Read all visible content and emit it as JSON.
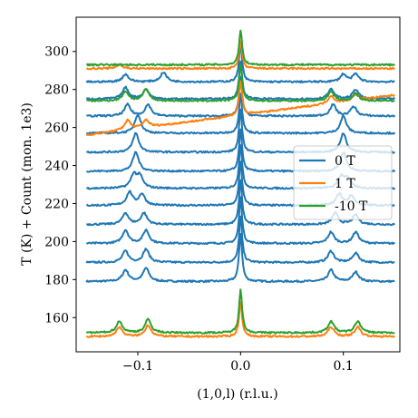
{
  "chart_data": {
    "type": "line",
    "title": "",
    "xlabel": "(1,0,l) (r.l.u.)",
    "ylabel": "T (K) + Count (mon. 1e3)",
    "xlim": [
      -0.16,
      0.155
    ],
    "ylim": [
      142,
      318
    ],
    "xticks": [
      -0.1,
      0.0,
      0.1
    ],
    "xtick_labels": [
      "−0.1",
      "0.0",
      "0.1"
    ],
    "yticks": [
      160,
      180,
      200,
      220,
      240,
      260,
      280,
      300
    ],
    "ytick_labels": [
      "160",
      "180",
      "200",
      "220",
      "240",
      "260",
      "280",
      "300"
    ],
    "grid": false,
    "legend_position": "center-right",
    "x_range": [
      -0.15,
      0.15
    ],
    "colors": {
      "0 T": "#1f77b4",
      "1 T": "#ff7f0e",
      "-10 T": "#2ca02c"
    },
    "series": [
      {
        "name": "0 T",
        "traces": [
          {
            "baseline": 179,
            "peaks": [
              [
                -0.112,
                6
              ],
              [
                -0.092,
                7
              ],
              [
                0.0,
                25
              ],
              [
                0.088,
                6
              ],
              [
                0.112,
                5
              ]
            ]
          },
          {
            "baseline": 189,
            "peaks": [
              [
                -0.112,
                6
              ],
              [
                -0.092,
                7
              ],
              [
                0.0,
                24
              ],
              [
                0.088,
                6
              ],
              [
                0.112,
                5
              ]
            ]
          },
          {
            "baseline": 199,
            "peaks": [
              [
                -0.112,
                7
              ],
              [
                -0.092,
                7
              ],
              [
                0.0,
                24
              ],
              [
                0.088,
                6
              ],
              [
                0.112,
                6
              ]
            ]
          },
          {
            "baseline": 209,
            "peaks": [
              [
                -0.112,
                6
              ],
              [
                -0.094,
                6
              ],
              [
                0.0,
                23
              ],
              [
                0.092,
                6
              ],
              [
                0.112,
                5
              ]
            ]
          },
          {
            "baseline": 219,
            "peaks": [
              [
                -0.108,
                7
              ],
              [
                -0.096,
                6
              ],
              [
                0.0,
                23
              ],
              [
                0.096,
                6
              ],
              [
                0.108,
                5
              ]
            ]
          },
          {
            "baseline": 228,
            "peaks": [
              [
                -0.104,
                7
              ],
              [
                -0.098,
                6
              ],
              [
                0.0,
                23
              ],
              [
                0.098,
                6
              ],
              [
                0.104,
                5
              ]
            ]
          },
          {
            "baseline": 237,
            "peaks": [
              [
                -0.102,
                10
              ],
              [
                0.0,
                22
              ],
              [
                0.1,
                10
              ]
            ]
          },
          {
            "baseline": 247,
            "peaks": [
              [
                -0.102,
                10
              ],
              [
                0.0,
                22
              ],
              [
                0.1,
                10
              ]
            ]
          },
          {
            "baseline": 257,
            "peaks": [
              [
                -0.1,
                10
              ],
              [
                0.0,
                21
              ],
              [
                0.1,
                9
              ]
            ]
          },
          {
            "baseline": 266,
            "peaks": [
              [
                -0.11,
                6
              ],
              [
                -0.09,
                6
              ],
              [
                0.0,
                21
              ],
              [
                0.09,
                6
              ],
              [
                0.11,
                5
              ]
            ]
          },
          {
            "baseline": 275,
            "peaks": [
              [
                -0.112,
                6
              ],
              [
                -0.092,
                5
              ],
              [
                0.0,
                20
              ],
              [
                0.088,
                5
              ],
              [
                0.112,
                5
              ]
            ]
          },
          {
            "baseline": 284,
            "peaks": [
              [
                -0.112,
                4
              ],
              [
                -0.075,
                5
              ],
              [
                0.0,
                20
              ],
              [
                0.1,
                4
              ],
              [
                0.112,
                4
              ]
            ]
          }
        ]
      },
      {
        "name": "1 T",
        "traces": [
          {
            "baseline": 150,
            "peaks": [
              [
                -0.118,
                5
              ],
              [
                -0.09,
                6
              ],
              [
                0.0,
                18
              ],
              [
                0.088,
                5
              ],
              [
                0.114,
                5
              ]
            ]
          },
          {
            "baseline": 256,
            "slope_end": 277,
            "peaks": [
              [
                -0.11,
                5
              ],
              [
                -0.092,
                4
              ],
              [
                0.0,
                18
              ],
              [
                0.088,
                4
              ],
              [
                0.112,
                3
              ]
            ]
          },
          {
            "baseline": 291,
            "peaks": [
              [
                -0.118,
                2
              ],
              [
                0.0,
                14
              ]
            ]
          }
        ]
      },
      {
        "name": "-10 T",
        "traces": [
          {
            "baseline": 152,
            "peaks": [
              [
                -0.118,
                6
              ],
              [
                -0.09,
                7
              ],
              [
                0.0,
                23
              ],
              [
                0.088,
                6
              ],
              [
                0.114,
                6
              ]
            ]
          },
          {
            "baseline": 274,
            "peaks": [
              [
                -0.112,
                5
              ],
              [
                -0.092,
                6
              ],
              [
                0.0,
                19
              ],
              [
                0.088,
                5
              ],
              [
                0.112,
                4
              ]
            ]
          },
          {
            "baseline": 293,
            "peaks": [
              [
                0.0,
                18
              ]
            ]
          }
        ]
      }
    ]
  }
}
